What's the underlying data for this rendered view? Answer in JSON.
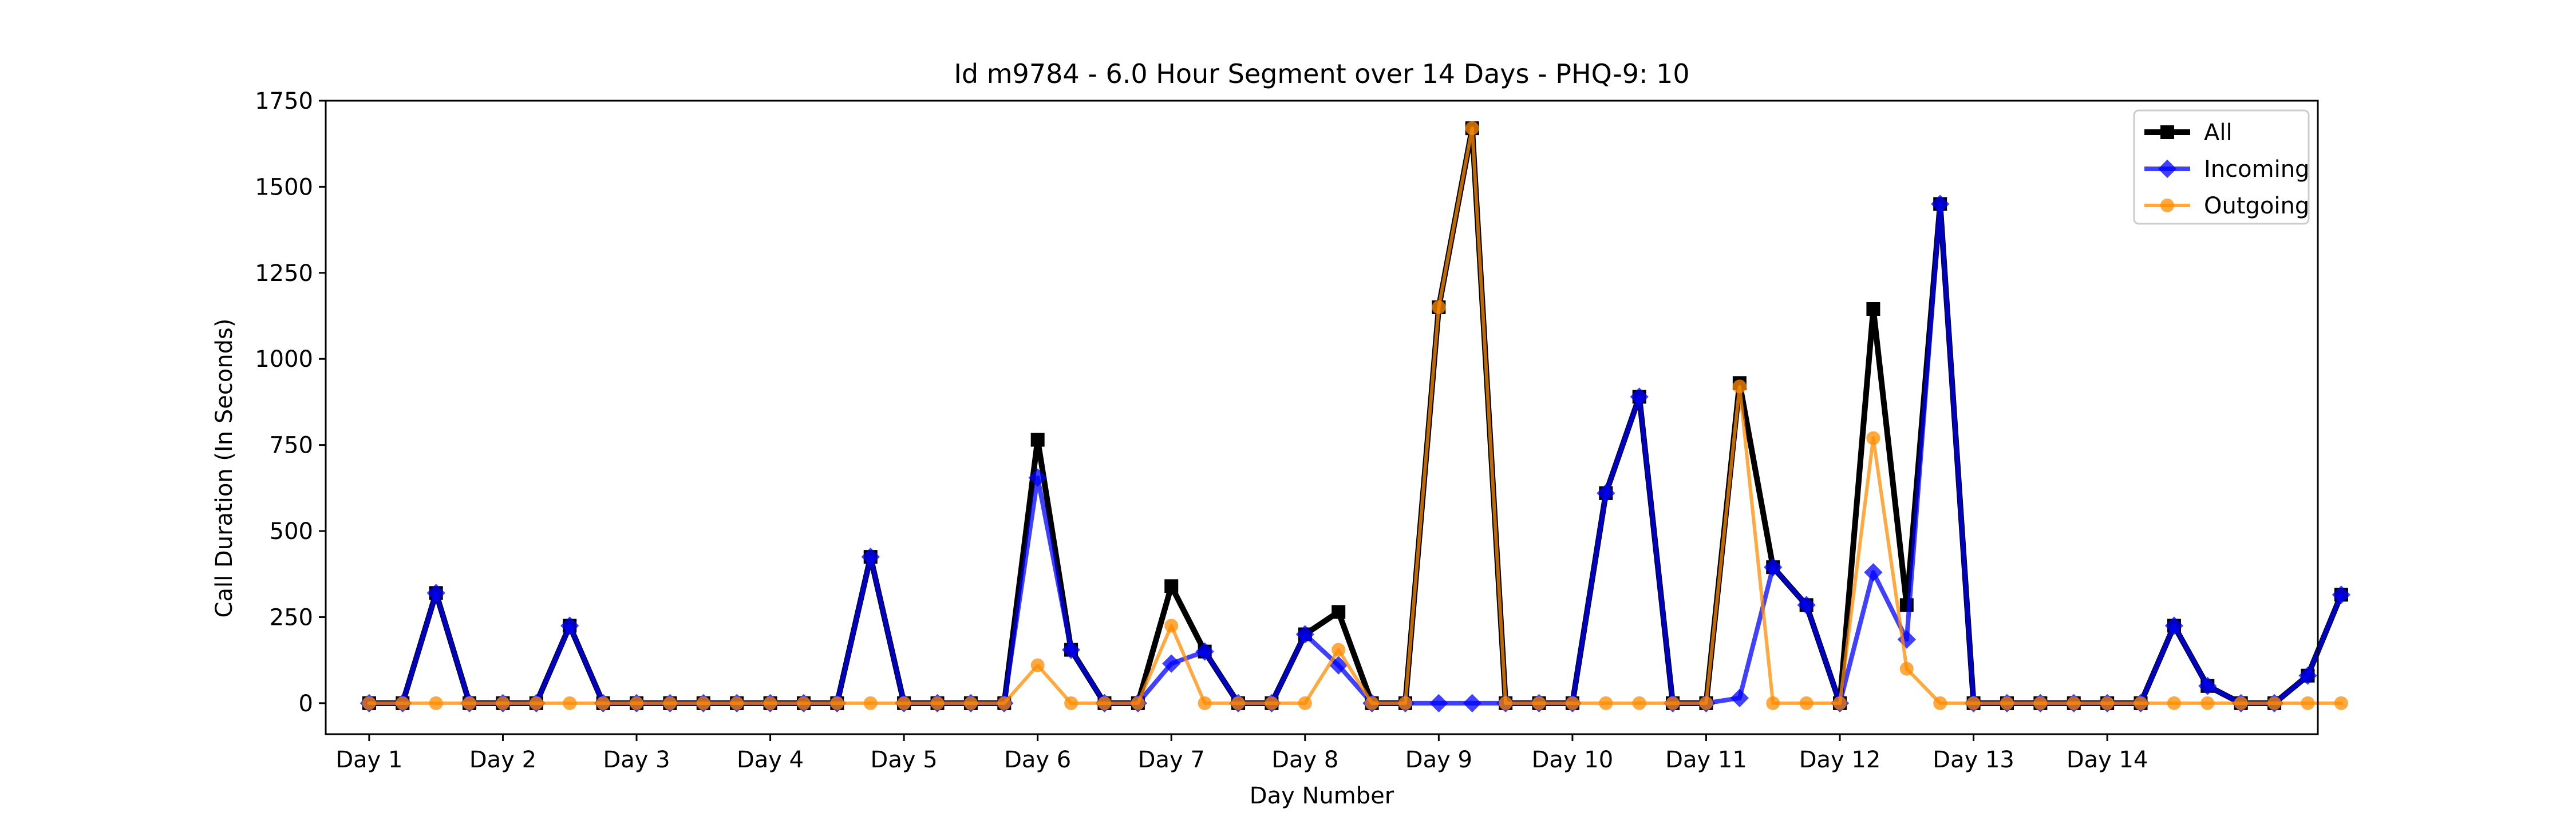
{
  "chart_data": {
    "type": "line",
    "title": "Id m9784 - 6.0 Hour Segment over 14 Days - PHQ-9: 10",
    "xlabel": "Day Number",
    "ylabel": "Call Duration (In Seconds)",
    "ylim": [
      -90,
      1750
    ],
    "xlim": [
      -1.3,
      58.3
    ],
    "grid": false,
    "legend_position": "top-right",
    "x_ticks": [
      {
        "x": 0,
        "label": "Day 1"
      },
      {
        "x": 4,
        "label": "Day 2"
      },
      {
        "x": 8,
        "label": "Day 3"
      },
      {
        "x": 12,
        "label": "Day 4"
      },
      {
        "x": 16,
        "label": "Day 5"
      },
      {
        "x": 20,
        "label": "Day 6"
      },
      {
        "x": 24,
        "label": "Day 7"
      },
      {
        "x": 28,
        "label": "Day 8"
      },
      {
        "x": 32,
        "label": "Day 9"
      },
      {
        "x": 36,
        "label": "Day 10"
      },
      {
        "x": 40,
        "label": "Day 11"
      },
      {
        "x": 44,
        "label": "Day 12"
      },
      {
        "x": 48,
        "label": "Day 13"
      },
      {
        "x": 52,
        "label": "Day 14"
      }
    ],
    "y_ticks": [
      0,
      250,
      500,
      750,
      1000,
      1250,
      1500,
      1750
    ],
    "series": [
      {
        "name": "All",
        "color": "#000000",
        "marker": "square",
        "line_width": 10,
        "alpha": 1,
        "values": [
          0,
          0,
          320,
          0,
          0,
          0,
          225,
          0,
          0,
          0,
          0,
          0,
          0,
          0,
          0,
          425,
          0,
          0,
          0,
          0,
          765,
          155,
          0,
          0,
          340,
          150,
          0,
          0,
          200,
          265,
          0,
          0,
          1150,
          1670,
          0,
          0,
          0,
          610,
          890,
          0,
          0,
          930,
          395,
          285,
          0,
          1145,
          285,
          1450,
          0,
          0,
          0,
          0,
          0,
          0,
          225,
          50,
          0,
          0,
          80,
          315
        ]
      },
      {
        "name": "Incoming",
        "color": "#0000ff",
        "marker": "diamond",
        "line_width": 8,
        "alpha": 0.75,
        "values": [
          0,
          0,
          320,
          0,
          0,
          0,
          225,
          0,
          0,
          0,
          0,
          0,
          0,
          0,
          0,
          425,
          0,
          0,
          0,
          0,
          655,
          155,
          0,
          0,
          115,
          150,
          0,
          0,
          200,
          110,
          0,
          0,
          0,
          0,
          0,
          0,
          0,
          610,
          890,
          0,
          0,
          15,
          395,
          285,
          0,
          380,
          185,
          1450,
          0,
          0,
          0,
          0,
          0,
          0,
          225,
          50,
          0,
          0,
          80,
          315
        ]
      },
      {
        "name": "Outgoing",
        "color": "#ff8c00",
        "marker": "circle",
        "line_width": 6,
        "alpha": 0.75,
        "values": [
          0,
          0,
          0,
          0,
          0,
          0,
          0,
          0,
          0,
          0,
          0,
          0,
          0,
          0,
          0,
          0,
          0,
          0,
          0,
          0,
          110,
          0,
          0,
          0,
          225,
          0,
          0,
          0,
          0,
          155,
          0,
          0,
          1150,
          1670,
          0,
          0,
          0,
          0,
          0,
          0,
          0,
          920,
          0,
          0,
          0,
          770,
          100,
          0,
          0,
          0,
          0,
          0,
          0,
          0,
          0,
          0,
          0,
          0,
          0,
          0
        ]
      }
    ]
  }
}
